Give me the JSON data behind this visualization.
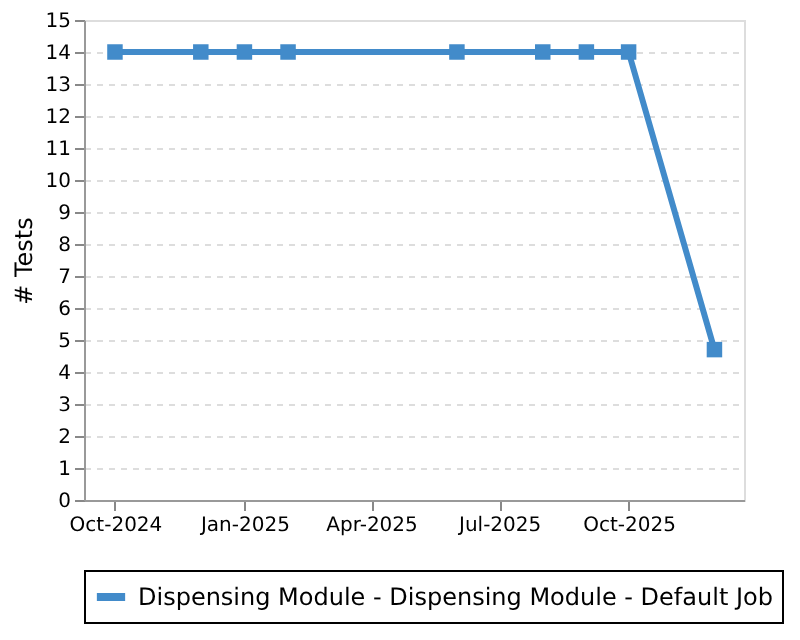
{
  "chart_data": {
    "type": "line",
    "ylabel": "# Tests",
    "x": [
      "2024-10-01",
      "2024-12-01",
      "2025-01-01",
      "2025-02-01",
      "2025-06-01",
      "2025-08-01",
      "2025-09-01",
      "2025-10-01",
      "2025-12-01"
    ],
    "series": [
      {
        "name": "Dispensing Module - Dispensing Module - Default Job",
        "color": "#428bca",
        "values": [
          14,
          14,
          14,
          14,
          14,
          14,
          14,
          14,
          4.7
        ]
      }
    ],
    "xlim": [
      "2024-09-09",
      "2025-12-22"
    ],
    "xticks": [
      {
        "value": "2024-10-01",
        "label": "Oct-2024"
      },
      {
        "value": "2025-01-01",
        "label": "Jan-2025"
      },
      {
        "value": "2025-04-01",
        "label": "Apr-2025"
      },
      {
        "value": "2025-07-01",
        "label": "Jul-2025"
      },
      {
        "value": "2025-10-01",
        "label": "Oct-2025"
      }
    ],
    "ylim": [
      0,
      15
    ],
    "yticks": [
      0,
      1,
      2,
      3,
      4,
      5,
      6,
      7,
      8,
      9,
      10,
      11,
      12,
      13,
      14,
      15
    ],
    "grid": "y",
    "legend": "bottom",
    "marker": "square",
    "line_style": "solid"
  }
}
